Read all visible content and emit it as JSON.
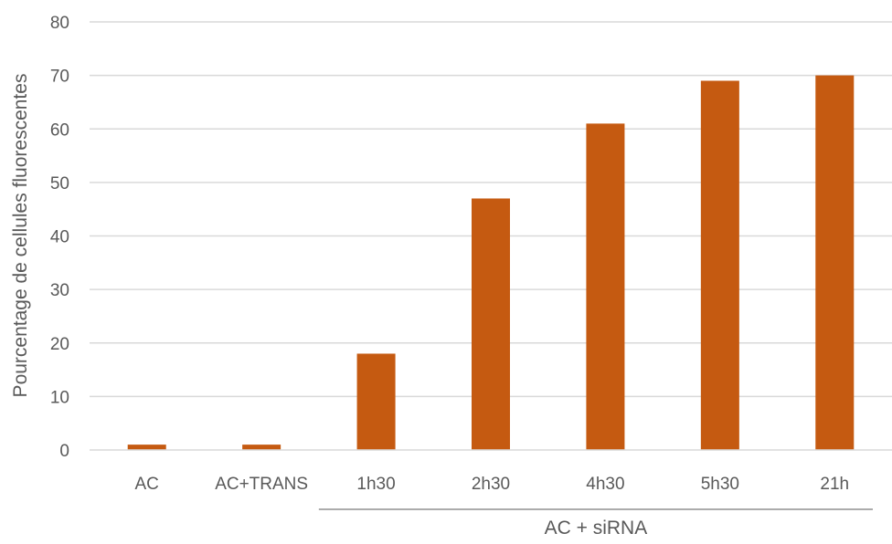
{
  "chart_data": {
    "type": "bar",
    "title": "",
    "ylabel": "Pourcentage de cellules fluorescentes",
    "xlabel": "",
    "categories": [
      "AC",
      "AC+TRANS",
      "1h30",
      "2h30",
      "4h30",
      "5h30",
      "21h"
    ],
    "values": [
      1,
      1,
      18,
      47,
      61,
      69,
      70
    ],
    "ylim": [
      0,
      80
    ],
    "yticks": [
      "0",
      "10",
      "20",
      "30",
      "40",
      "50",
      "60",
      "70",
      "80"
    ],
    "grid": true,
    "bar_color": "#C55A11",
    "group_label": "AC + siRNA",
    "group_categories": [
      "1h30",
      "2h30",
      "4h30",
      "5h30",
      "21h"
    ]
  }
}
